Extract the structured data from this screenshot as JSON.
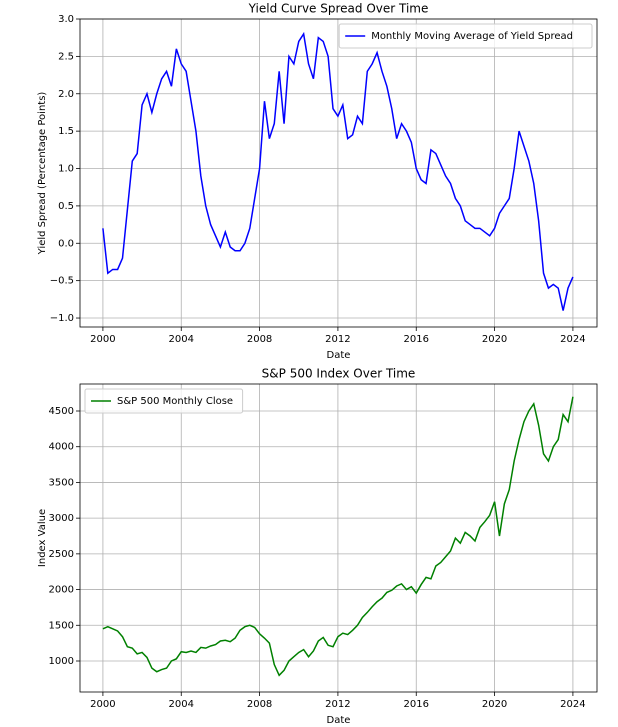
{
  "chart_data": [
    {
      "type": "line",
      "title": "Yield Curve Spread Over Time",
      "xlabel": "Date",
      "ylabel": "Yield Spread (Percentage Points)",
      "x": [
        2000,
        2000.25,
        2000.5,
        2000.75,
        2001,
        2001.25,
        2001.5,
        2001.75,
        2002,
        2002.25,
        2002.5,
        2002.75,
        2003,
        2003.25,
        2003.5,
        2003.75,
        2004,
        2004.25,
        2004.5,
        2004.75,
        2005,
        2005.25,
        2005.5,
        2005.75,
        2006,
        2006.25,
        2006.5,
        2006.75,
        2007,
        2007.25,
        2007.5,
        2007.75,
        2008,
        2008.25,
        2008.5,
        2008.75,
        2009,
        2009.25,
        2009.5,
        2009.75,
        2010,
        2010.25,
        2010.5,
        2010.75,
        2011,
        2011.25,
        2011.5,
        2011.75,
        2012,
        2012.25,
        2012.5,
        2012.75,
        2013,
        2013.25,
        2013.5,
        2013.75,
        2014,
        2014.25,
        2014.5,
        2014.75,
        2015,
        2015.25,
        2015.5,
        2015.75,
        2016,
        2016.25,
        2016.5,
        2016.75,
        2017,
        2017.25,
        2017.5,
        2017.75,
        2018,
        2018.25,
        2018.5,
        2018.75,
        2019,
        2019.25,
        2019.5,
        2019.75,
        2020,
        2020.25,
        2020.5,
        2020.75,
        2021,
        2021.25,
        2021.5,
        2021.75,
        2022,
        2022.25,
        2022.5,
        2022.75,
        2023,
        2023.25,
        2023.5,
        2023.75,
        2024
      ],
      "series": [
        {
          "name": "Monthly Moving Average of Yield Spread",
          "color": "#0000ff",
          "values": [
            0.2,
            -0.4,
            -0.35,
            -0.35,
            -0.2,
            0.45,
            1.1,
            1.2,
            1.85,
            2.0,
            1.75,
            2.0,
            2.2,
            2.3,
            2.1,
            2.6,
            2.4,
            2.3,
            1.9,
            1.5,
            0.9,
            0.5,
            0.25,
            0.1,
            -0.05,
            0.15,
            -0.05,
            -0.1,
            -0.1,
            0.0,
            0.2,
            0.6,
            1.0,
            1.9,
            1.4,
            1.6,
            2.3,
            1.6,
            2.5,
            2.4,
            2.7,
            2.8,
            2.4,
            2.2,
            2.75,
            2.7,
            2.5,
            1.8,
            1.7,
            1.85,
            1.4,
            1.45,
            1.7,
            1.6,
            2.3,
            2.4,
            2.55,
            2.3,
            2.1,
            1.8,
            1.4,
            1.6,
            1.5,
            1.35,
            1.0,
            0.85,
            0.8,
            1.25,
            1.2,
            1.05,
            0.9,
            0.8,
            0.6,
            0.5,
            0.3,
            0.25,
            0.2,
            0.2,
            0.15,
            0.1,
            0.2,
            0.4,
            0.5,
            0.6,
            1.0,
            1.5,
            1.3,
            1.1,
            0.8,
            0.3,
            -0.4,
            -0.6,
            -0.55,
            -0.6,
            -0.9,
            -0.6,
            -0.45
          ]
        }
      ],
      "xlim": [
        1998.83,
        2025.23
      ],
      "ylim": [
        -1.12,
        3.0
      ],
      "xticks": [
        2000,
        2004,
        2008,
        2012,
        2016,
        2020,
        2024
      ],
      "yticks": [
        {
          "value": -1,
          "label": "−1.0"
        },
        {
          "value": -0.5,
          "label": "−0.5"
        },
        {
          "value": 0,
          "label": "0.0"
        },
        0.5,
        {
          "value": 1,
          "label": "1.0"
        },
        1.5,
        {
          "value": 2,
          "label": "2.0"
        },
        2.5,
        {
          "value": 3,
          "label": "3.0"
        }
      ],
      "grid": true,
      "legend": "upper right"
    },
    {
      "type": "line",
      "title": "S&P 500 Index Over Time",
      "xlabel": "Date",
      "ylabel": "Index Value",
      "x": [
        2000,
        2000.25,
        2000.5,
        2000.75,
        2001,
        2001.25,
        2001.5,
        2001.75,
        2002,
        2002.25,
        2002.5,
        2002.75,
        2003,
        2003.25,
        2003.5,
        2003.75,
        2004,
        2004.25,
        2004.5,
        2004.75,
        2005,
        2005.25,
        2005.5,
        2005.75,
        2006,
        2006.25,
        2006.5,
        2006.75,
        2007,
        2007.25,
        2007.5,
        2007.75,
        2008,
        2008.25,
        2008.5,
        2008.75,
        2009,
        2009.25,
        2009.5,
        2009.75,
        2010,
        2010.25,
        2010.5,
        2010.75,
        2011,
        2011.25,
        2011.5,
        2011.75,
        2012,
        2012.25,
        2012.5,
        2012.75,
        2013,
        2013.25,
        2013.5,
        2013.75,
        2014,
        2014.25,
        2014.5,
        2014.75,
        2015,
        2015.25,
        2015.5,
        2015.75,
        2016,
        2016.25,
        2016.5,
        2016.75,
        2017,
        2017.25,
        2017.5,
        2017.75,
        2018,
        2018.25,
        2018.5,
        2018.75,
        2019,
        2019.25,
        2019.5,
        2019.75,
        2020,
        2020.25,
        2020.5,
        2020.75,
        2021,
        2021.25,
        2021.5,
        2021.75,
        2022,
        2022.25,
        2022.5,
        2022.75,
        2023,
        2023.25,
        2023.5,
        2023.75,
        2024
      ],
      "series": [
        {
          "name": "S&P 500 Monthly Close",
          "color": "#008000",
          "values": [
            1450,
            1480,
            1450,
            1420,
            1340,
            1200,
            1180,
            1100,
            1120,
            1050,
            900,
            850,
            880,
            900,
            1000,
            1030,
            1130,
            1120,
            1140,
            1120,
            1190,
            1180,
            1210,
            1230,
            1280,
            1290,
            1270,
            1320,
            1430,
            1480,
            1500,
            1470,
            1380,
            1320,
            1250,
            950,
            800,
            870,
            1000,
            1060,
            1120,
            1160,
            1060,
            1140,
            1280,
            1330,
            1220,
            1200,
            1340,
            1390,
            1370,
            1430,
            1500,
            1610,
            1680,
            1760,
            1830,
            1880,
            1960,
            1990,
            2050,
            2080,
            2000,
            2040,
            1950,
            2070,
            2170,
            2150,
            2330,
            2380,
            2460,
            2540,
            2720,
            2650,
            2800,
            2750,
            2680,
            2870,
            2950,
            3040,
            3230,
            2750,
            3200,
            3400,
            3800,
            4100,
            4350,
            4500,
            4600,
            4300,
            3900,
            3800,
            4000,
            4100,
            4450,
            4350,
            4700
          ]
        }
      ],
      "xlim": [
        1998.83,
        2025.23
      ],
      "ylim": [
        566,
        4878
      ],
      "xticks": [
        2000,
        2004,
        2008,
        2012,
        2016,
        2020,
        2024
      ],
      "yticks": [
        1000,
        1500,
        2000,
        2500,
        3000,
        3500,
        4000,
        4500
      ],
      "grid": true,
      "legend": "upper left"
    }
  ]
}
